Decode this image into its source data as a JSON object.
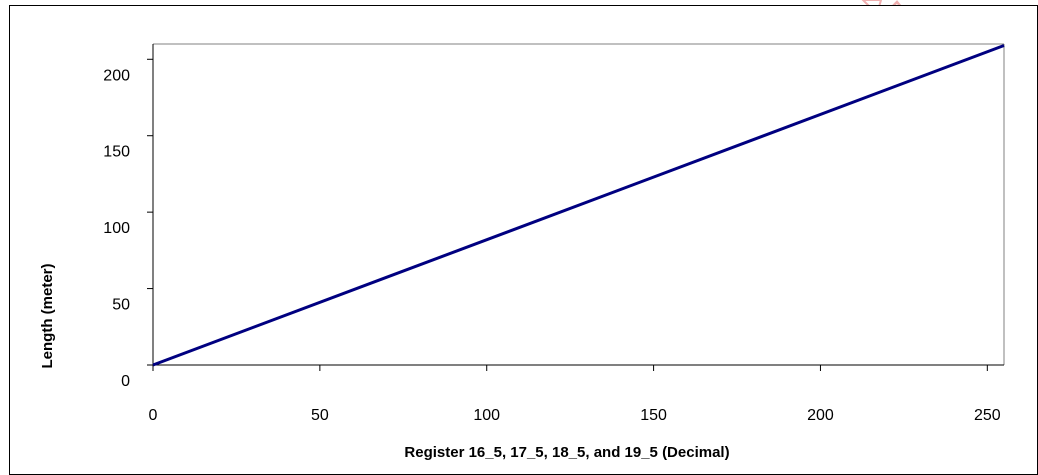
{
  "colors": {
    "series_line": "#000080",
    "axis": "#000000",
    "frame": "#000000",
    "plot_border": "#808080",
    "watermark": "#e8a0a0"
  },
  "chart_data": {
    "type": "line",
    "title": "",
    "xlabel": "Register 16_5, 17_5, 18_5, and 19_5 (Decimal)",
    "ylabel": "Length (meter)",
    "xlim": [
      0,
      255
    ],
    "ylim": [
      0,
      210
    ],
    "x_ticks": [
      0,
      50,
      100,
      150,
      200,
      250
    ],
    "y_ticks": [
      0,
      50,
      100,
      150,
      200
    ],
    "grid": false,
    "legend": "none",
    "series": [
      {
        "x": [
          0,
          255
        ],
        "y": [
          0,
          209
        ]
      }
    ]
  }
}
